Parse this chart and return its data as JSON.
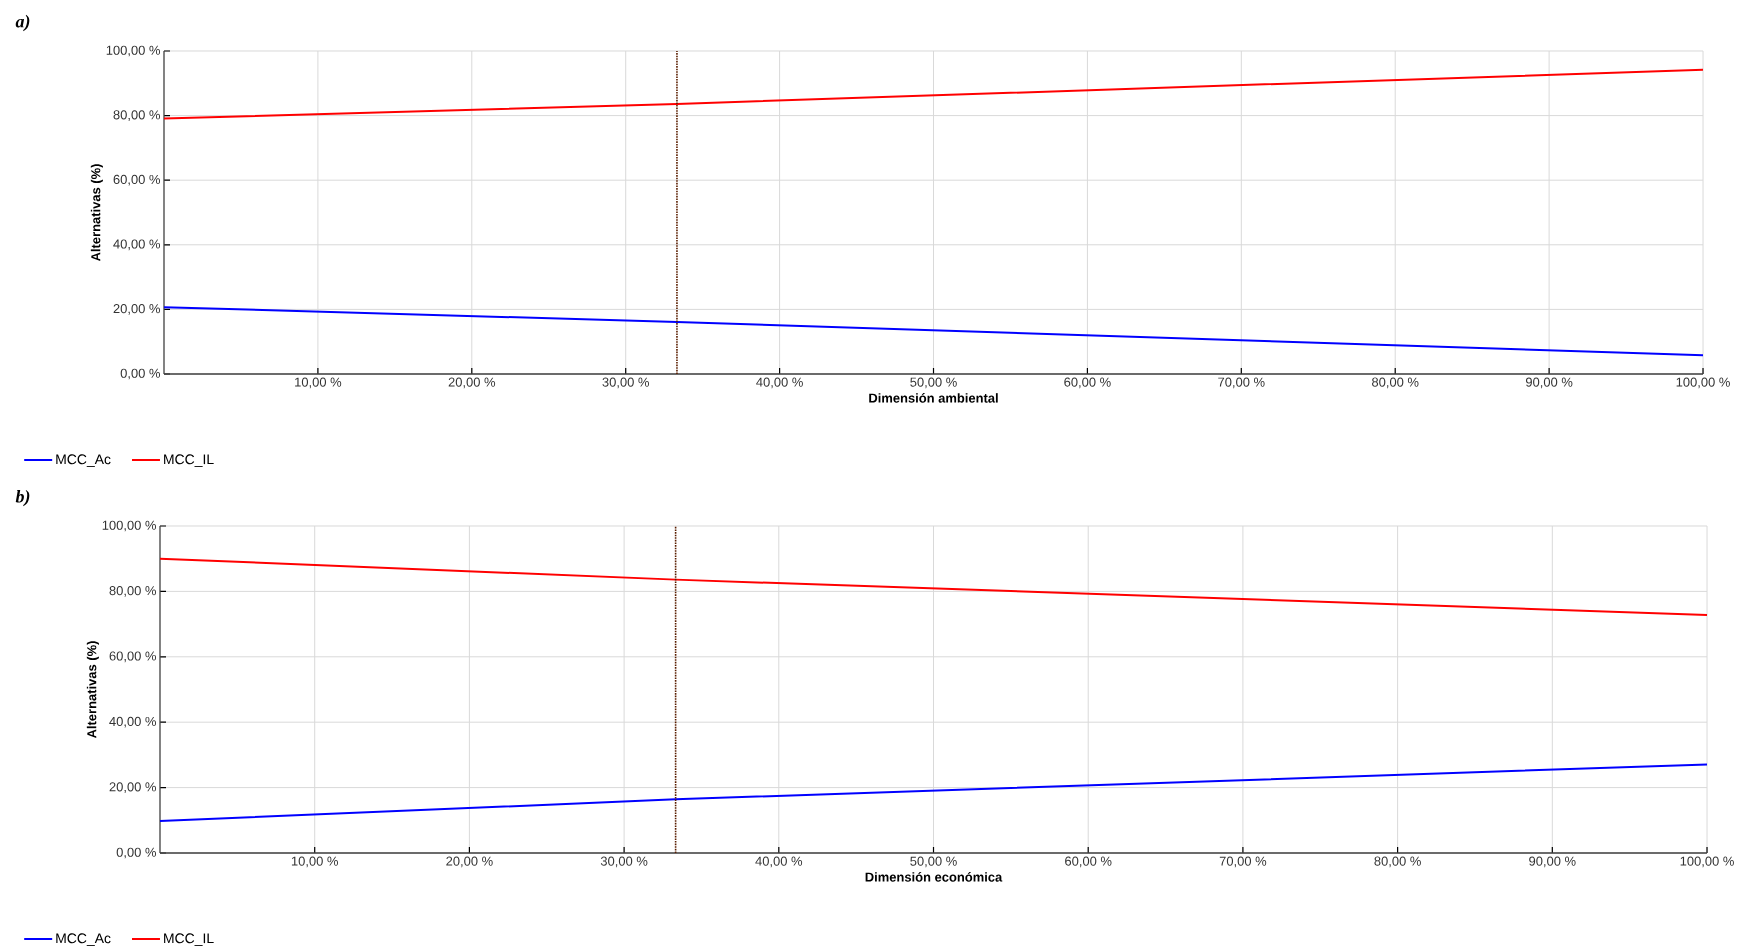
{
  "chart_data": [
    {
      "type": "line",
      "title": "a)",
      "xlabel": "Dimensión ambiental",
      "ylabel": "Alternativas (%)",
      "series": [
        {
          "name": "MCC_Ac",
          "color": "#0000ff",
          "x": [
            0,
            33.33,
            100
          ],
          "values": [
            20.7,
            16.1,
            5.8
          ]
        },
        {
          "name": "MCC_IL",
          "color": "#ff0000",
          "x": [
            0,
            33.33,
            100
          ],
          "values": [
            79.1,
            83.6,
            94.2
          ]
        }
      ],
      "xlim": [
        0,
        100
      ],
      "ylim": [
        0,
        100
      ],
      "xticks": [
        {
          "value": 10,
          "label": "10,00 %"
        },
        {
          "value": 20,
          "label": "20,00 %"
        },
        {
          "value": 30,
          "label": "30,00 %"
        },
        {
          "value": 40,
          "label": "40,00 %"
        },
        {
          "value": 50,
          "label": "50,00 %"
        },
        {
          "value": 60,
          "label": "60,00 %"
        },
        {
          "value": 70,
          "label": "70,00 %"
        },
        {
          "value": 80,
          "label": "80,00 %"
        },
        {
          "value": 90,
          "label": "90,00 %"
        },
        {
          "value": 100,
          "label": "100,00 %"
        }
      ],
      "yticks": [
        {
          "value": 0,
          "label": "0,00 %"
        },
        {
          "value": 20,
          "label": "20,00 %"
        },
        {
          "value": 40,
          "label": "40,00 %"
        },
        {
          "value": 60,
          "label": "60,00 %"
        },
        {
          "value": 80,
          "label": "80,00 %"
        },
        {
          "value": 100,
          "label": "100,00 %"
        }
      ],
      "grid": true,
      "legend": "bottom left",
      "marker": "none",
      "ref_lines": [
        {
          "axis": "x",
          "value": 33.33,
          "color": "#5a1e00",
          "line_style": "dotted"
        }
      ]
    },
    {
      "type": "line",
      "title": "b)",
      "xlabel": "Dimensión económica",
      "ylabel": "Alternativas (%)",
      "series": [
        {
          "name": "MCC_Ac",
          "color": "#0000ff",
          "x": [
            0,
            33.33,
            100
          ],
          "values": [
            9.8,
            16.4,
            27.1
          ]
        },
        {
          "name": "MCC_IL",
          "color": "#ff0000",
          "x": [
            0,
            33.33,
            100
          ],
          "values": [
            90,
            83.6,
            72.8
          ]
        }
      ],
      "xlim": [
        0,
        100
      ],
      "ylim": [
        0,
        100
      ],
      "xticks": [
        {
          "value": 10,
          "label": "10,00 %"
        },
        {
          "value": 20,
          "label": "20,00 %"
        },
        {
          "value": 30,
          "label": "30,00 %"
        },
        {
          "value": 40,
          "label": "40,00 %"
        },
        {
          "value": 50,
          "label": "50,00 %"
        },
        {
          "value": 60,
          "label": "60,00 %"
        },
        {
          "value": 70,
          "label": "70,00 %"
        },
        {
          "value": 80,
          "label": "80,00 %"
        },
        {
          "value": 90,
          "label": "90,00 %"
        },
        {
          "value": 100,
          "label": "100,00 %"
        }
      ],
      "yticks": [
        {
          "value": 0,
          "label": "0,00 %"
        },
        {
          "value": 20,
          "label": "20,00 %"
        },
        {
          "value": 40,
          "label": "40,00 %"
        },
        {
          "value": 60,
          "label": "60,00 %"
        },
        {
          "value": 80,
          "label": "80,00 %"
        },
        {
          "value": 100,
          "label": "100,00 %"
        }
      ],
      "grid": true,
      "legend": "bottom left",
      "marker": "none",
      "ref_lines": [
        {
          "axis": "x",
          "value": 33.33,
          "color": "#5a1e00",
          "line_style": "dotted"
        }
      ]
    }
  ]
}
